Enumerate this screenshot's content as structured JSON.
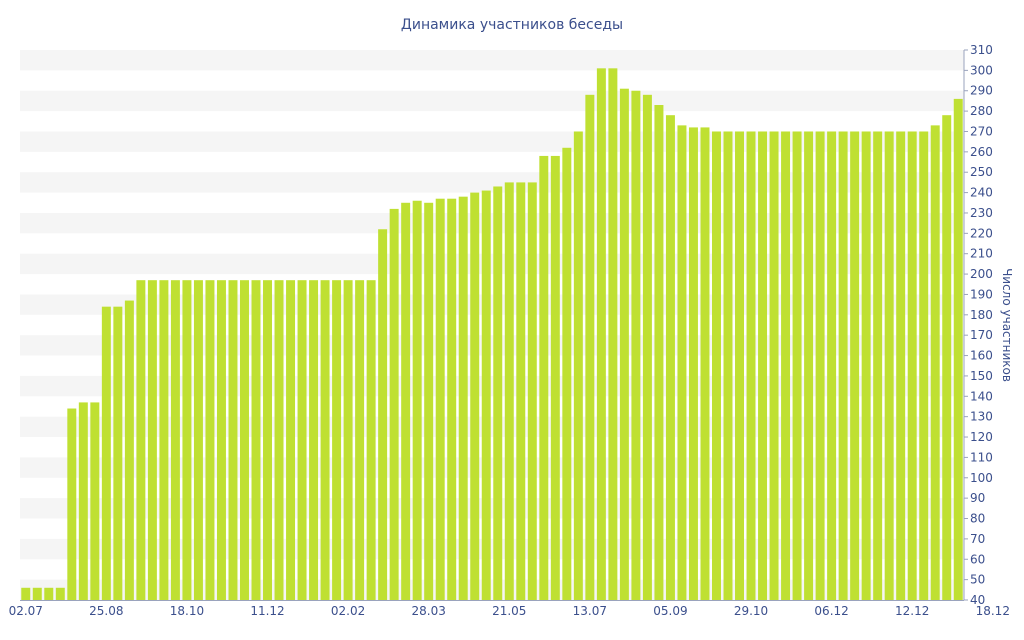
{
  "chart_data": {
    "type": "bar",
    "title": "Динамика участников беседы",
    "xlabel": "",
    "ylabel": "Число участников",
    "ylim": [
      40,
      310
    ],
    "y_ticks": [
      40,
      50,
      60,
      70,
      80,
      90,
      100,
      110,
      120,
      130,
      140,
      150,
      160,
      170,
      180,
      190,
      200,
      210,
      220,
      230,
      240,
      250,
      260,
      270,
      280,
      290,
      300,
      310
    ],
    "x_tick_labels": [
      {
        "index": 0,
        "label": "02.07"
      },
      {
        "index": 7,
        "label": "25.08"
      },
      {
        "index": 14,
        "label": "18.10"
      },
      {
        "index": 21,
        "label": "11.12"
      },
      {
        "index": 28,
        "label": "02.02"
      },
      {
        "index": 35,
        "label": "28.03"
      },
      {
        "index": 42,
        "label": "21.05"
      },
      {
        "index": 49,
        "label": "13.07"
      },
      {
        "index": 56,
        "label": "05.09"
      },
      {
        "index": 63,
        "label": "29.10"
      },
      {
        "index": 70,
        "label": "06.12"
      },
      {
        "index": 77,
        "label": "12.12"
      },
      {
        "index": 84,
        "label": "18.12"
      }
    ],
    "values": [
      46,
      46,
      46,
      46,
      134,
      137,
      137,
      184,
      184,
      187,
      197,
      197,
      197,
      197,
      197,
      197,
      197,
      197,
      197,
      197,
      197,
      197,
      197,
      197,
      197,
      197,
      197,
      197,
      197,
      197,
      197,
      222,
      232,
      235,
      236,
      235,
      237,
      237,
      238,
      240,
      241,
      243,
      245,
      245,
      245,
      258,
      258,
      262,
      270,
      288,
      301,
      301,
      291,
      290,
      288,
      283,
      278,
      273,
      272,
      272,
      270,
      270,
      270,
      270,
      270,
      270,
      270,
      270,
      270,
      270,
      270,
      270,
      270,
      270,
      270,
      270,
      270,
      270,
      270,
      273,
      278,
      286
    ],
    "bar_color": "#bfe032",
    "grid_band_color": "#f5f5f5",
    "text_color": "#3b4f8c",
    "axis_position": "right"
  }
}
